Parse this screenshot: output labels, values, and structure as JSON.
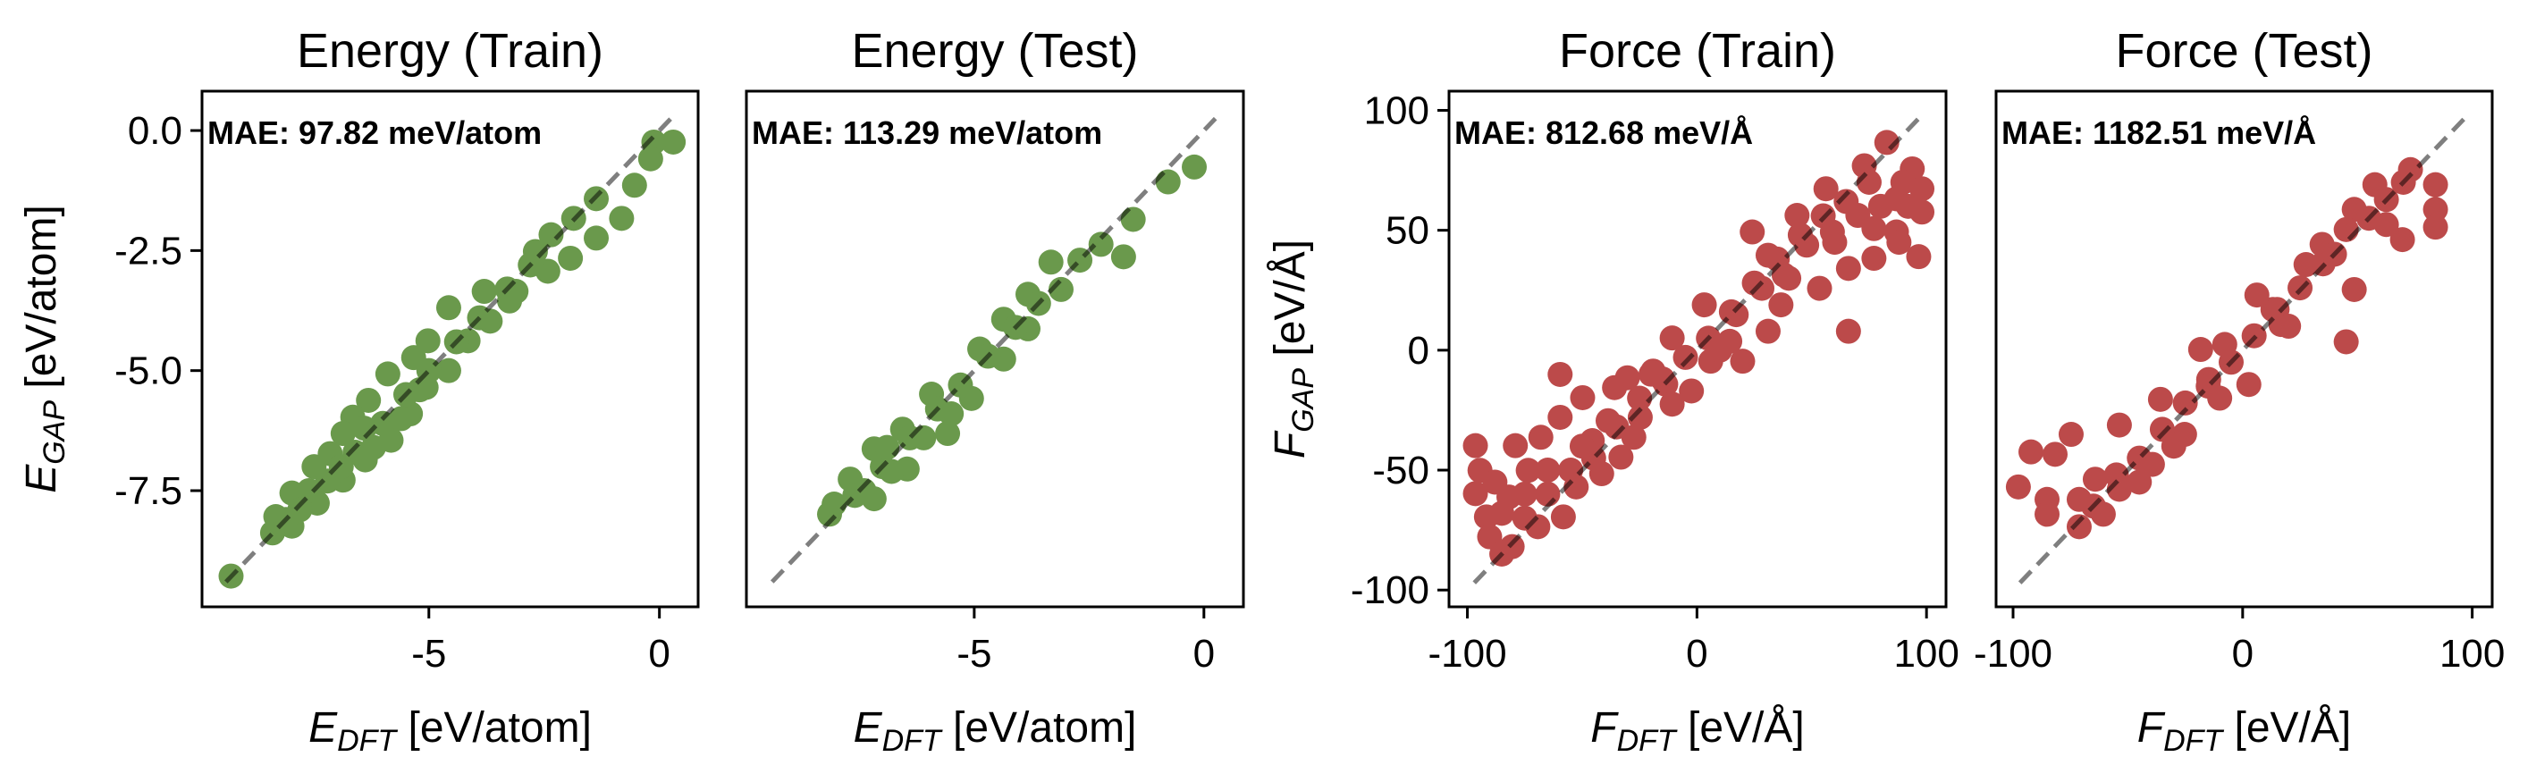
{
  "chart_data": [
    {
      "type": "scatter",
      "title": "Energy (Train)",
      "annotation": "MAE: 97.82 meV/atom",
      "xlabel": {
        "symbol": "E",
        "sub": "DFT",
        "unit": " [eV/atom]"
      },
      "ylabel": {
        "symbol": "E",
        "sub": "GAP",
        "unit": " [eV/atom]"
      },
      "xlim": [
        -9.92,
        0.84
      ],
      "ylim": [
        -9.92,
        0.82
      ],
      "xticks": [
        {
          "v": -5,
          "label": "-5"
        },
        {
          "v": 0,
          "label": "0"
        }
      ],
      "yticks": [
        {
          "v": 0,
          "label": "0.0"
        },
        {
          "v": -2.5,
          "label": "-2.5"
        },
        {
          "v": -5,
          "label": "-5.0"
        },
        {
          "v": -7.5,
          "label": "-7.5"
        }
      ],
      "diagonal": [
        -9.4,
        0.25
      ],
      "color": "#6a994c",
      "points": [
        [
          -9.29,
          -9.28
        ],
        [
          0.3,
          -0.24
        ],
        [
          -0.12,
          -0.24
        ],
        [
          -0.19,
          -0.59
        ],
        [
          -0.54,
          -1.14
        ],
        [
          -1.37,
          -1.42
        ],
        [
          -0.82,
          -1.83
        ],
        [
          -1.86,
          -1.83
        ],
        [
          -1.37,
          -2.24
        ],
        [
          -2.35,
          -2.17
        ],
        [
          -2.69,
          -2.52
        ],
        [
          -1.93,
          -2.66
        ],
        [
          -2.42,
          -2.93
        ],
        [
          -3.11,
          -3.35
        ],
        [
          -3.8,
          -3.35
        ],
        [
          -3.25,
          -3.55
        ],
        [
          -4.57,
          -3.69
        ],
        [
          -3.67,
          -3.97
        ],
        [
          -4.15,
          -4.38
        ],
        [
          -5.02,
          -4.38
        ],
        [
          -5.33,
          -4.73
        ],
        [
          -4.57,
          -5.0
        ],
        [
          -5.89,
          -5.07
        ],
        [
          -5.06,
          -5.35
        ],
        [
          -6.31,
          -5.62
        ],
        [
          -5.4,
          -5.9
        ],
        [
          -6.65,
          -5.97
        ],
        [
          -5.82,
          -6.45
        ],
        [
          -6.86,
          -6.31
        ],
        [
          -6.38,
          -6.86
        ],
        [
          -7.14,
          -6.73
        ],
        [
          -7.49,
          -7.0
        ],
        [
          -6.86,
          -7.28
        ],
        [
          -7.97,
          -7.55
        ],
        [
          -7.42,
          -7.76
        ],
        [
          -8.32,
          -8.04
        ],
        [
          -7.97,
          -8.24
        ],
        [
          -8.39,
          -8.38
        ],
        [
          -7.8,
          -7.9
        ],
        [
          -7.2,
          -7.3
        ],
        [
          -6.6,
          -6.7
        ],
        [
          -6.0,
          -6.1
        ],
        [
          -5.5,
          -5.5
        ],
        [
          -5.0,
          -5.0
        ],
        [
          -4.4,
          -4.4
        ],
        [
          -3.9,
          -3.9
        ],
        [
          -3.3,
          -3.3
        ],
        [
          -2.8,
          -2.8
        ],
        [
          -6.2,
          -6.6
        ],
        [
          -6.9,
          -7.0
        ],
        [
          -5.6,
          -6.0
        ],
        [
          -7.6,
          -7.5
        ],
        [
          -8.1,
          -8.1
        ],
        [
          -6.4,
          -6.2
        ],
        [
          -5.2,
          -5.4
        ]
      ]
    },
    {
      "type": "scatter",
      "title": "Energy (Test)",
      "annotation": "MAE: 113.29 meV/atom",
      "xlabel": {
        "symbol": "E",
        "sub": "DFT",
        "unit": " [eV/atom]"
      },
      "xlim": [
        -9.96,
        0.86
      ],
      "ylim": [
        -9.92,
        0.82
      ],
      "xticks": [
        {
          "v": -5,
          "label": "-5"
        },
        {
          "v": 0,
          "label": "0"
        }
      ],
      "yticks": [],
      "diagonal": [
        -9.4,
        0.25
      ],
      "color": "#6a994c",
      "points": [
        [
          -0.21,
          -0.76
        ],
        [
          -0.78,
          -1.07
        ],
        [
          -1.54,
          -1.85
        ],
        [
          -1.75,
          -2.63
        ],
        [
          -2.24,
          -2.37
        ],
        [
          -3.33,
          -2.74
        ],
        [
          -3.11,
          -3.31
        ],
        [
          -3.83,
          -3.41
        ],
        [
          -4.36,
          -3.93
        ],
        [
          -3.83,
          -4.13
        ],
        [
          -4.88,
          -4.55
        ],
        [
          -4.36,
          -4.76
        ],
        [
          -5.93,
          -5.49
        ],
        [
          -5.06,
          -5.58
        ],
        [
          -6.56,
          -6.22
        ],
        [
          -5.58,
          -6.31
        ],
        [
          -7.18,
          -6.63
        ],
        [
          -6.46,
          -7.05
        ],
        [
          -7.7,
          -7.26
        ],
        [
          -7.18,
          -7.67
        ],
        [
          -8.05,
          -7.78
        ],
        [
          -8.15,
          -7.99
        ],
        [
          -7.6,
          -7.6
        ],
        [
          -7.0,
          -7.0
        ],
        [
          -6.4,
          -6.4
        ],
        [
          -5.8,
          -5.8
        ],
        [
          -5.3,
          -5.3
        ],
        [
          -4.7,
          -4.7
        ],
        [
          -4.1,
          -4.1
        ],
        [
          -3.6,
          -3.6
        ],
        [
          -2.7,
          -2.7
        ],
        [
          -6.8,
          -7.1
        ],
        [
          -6.1,
          -6.4
        ],
        [
          -7.4,
          -7.5
        ],
        [
          -6.9,
          -6.6
        ],
        [
          -5.5,
          -5.9
        ]
      ]
    },
    {
      "type": "scatter",
      "title": "Force (Train)",
      "annotation": "MAE: 812.68 meV/Å",
      "xlabel": {
        "symbol": "F",
        "sub": "DFT",
        "unit": " [eV/Å]"
      },
      "ylabel": {
        "symbol": "F",
        "sub": "GAP",
        "unit": " [eV/Å]"
      },
      "xlim": [
        -108,
        108.5
      ],
      "ylim": [
        -107,
        108
      ],
      "xticks": [
        {
          "v": -100,
          "label": "-100"
        },
        {
          "v": 0,
          "label": "0"
        },
        {
          "v": 100,
          "label": "100"
        }
      ],
      "yticks": [
        {
          "v": 100,
          "label": "100"
        },
        {
          "v": 50,
          "label": "50"
        },
        {
          "v": 0,
          "label": "0"
        },
        {
          "v": -50,
          "label": "-50"
        },
        {
          "v": -100,
          "label": "-100"
        }
      ],
      "diagonal": [
        -97,
        97
      ],
      "color": "#bc4a4a",
      "points": [
        [
          82.7,
          86.6
        ],
        [
          93.8,
          75.6
        ],
        [
          98,
          67.3
        ],
        [
          98,
          57.6
        ],
        [
          96.6,
          39
        ],
        [
          86.9,
          49.3
        ],
        [
          77.1,
          38.3
        ],
        [
          66,
          34.1
        ],
        [
          53.4,
          25.8
        ],
        [
          66,
          7.9
        ],
        [
          31,
          7.9
        ],
        [
          19.9,
          -4.6
        ],
        [
          36.6,
          18.9
        ],
        [
          56.2,
          67.3
        ],
        [
          43.6,
          56.2
        ],
        [
          31,
          39.6
        ],
        [
          24.1,
          49.3
        ],
        [
          3.2,
          18.9
        ],
        [
          -2.4,
          -17
        ],
        [
          -10.8,
          5.1
        ],
        [
          -19.1,
          -8.7
        ],
        [
          -30.3,
          -11.5
        ],
        [
          -35.9,
          -15.6
        ],
        [
          -49.8,
          -19.8
        ],
        [
          -59.6,
          -10.1
        ],
        [
          -59.6,
          -28
        ],
        [
          -33.1,
          -44.6
        ],
        [
          -41.5,
          -51.5
        ],
        [
          -52.6,
          -57
        ],
        [
          -68,
          -36.3
        ],
        [
          -79.1,
          -39.8
        ],
        [
          -96.5,
          -39.8
        ],
        [
          -94.5,
          -50.1
        ],
        [
          -96.5,
          -59.8
        ],
        [
          -91.7,
          -69.5
        ],
        [
          -90.3,
          -77.8
        ],
        [
          -80.5,
          -81.9
        ],
        [
          -81.9,
          -61.2
        ],
        [
          -69.3,
          -73.6
        ],
        [
          -58.2,
          -69.5
        ],
        [
          -73.5,
          -50.1
        ],
        [
          -45.6,
          -37.7
        ],
        [
          -24.7,
          -28
        ],
        [
          -13.6,
          -14.2
        ],
        [
          14.3,
          3.7
        ],
        [
          28.3,
          25.8
        ],
        [
          47.8,
          43.8
        ],
        [
          70.1,
          56.2
        ],
        [
          77.1,
          50.7
        ],
        [
          86.9,
          63.1
        ],
        [
          59,
          49.3
        ],
        [
          89.7,
          70
        ],
        [
          72.9,
          76.9
        ],
        [
          38,
          31.3
        ],
        [
          17.1,
          14.8
        ],
        [
          -10.8,
          -22.5
        ],
        [
          6,
          -4.6
        ],
        [
          -27.5,
          -36.3
        ],
        [
          -38.7,
          -29.4
        ],
        [
          -85,
          -85
        ],
        [
          -75,
          -70
        ],
        [
          -65,
          -60
        ],
        [
          -55,
          -50
        ],
        [
          -45,
          -45
        ],
        [
          -35,
          -32
        ],
        [
          -25,
          -20
        ],
        [
          -15,
          -12
        ],
        [
          -5,
          -3
        ],
        [
          5,
          5
        ],
        [
          15,
          16
        ],
        [
          25,
          28
        ],
        [
          35,
          38
        ],
        [
          45,
          48
        ],
        [
          55,
          56
        ],
        [
          65,
          62
        ],
        [
          75,
          70
        ],
        [
          92,
          60
        ],
        [
          88,
          45
        ],
        [
          -88,
          -55
        ],
        [
          -85,
          -68
        ],
        [
          -75,
          -60
        ],
        [
          -65,
          -50
        ],
        [
          -50,
          -40
        ],
        [
          -20,
          -10
        ],
        [
          10,
          0
        ],
        [
          40,
          30
        ],
        [
          60,
          45
        ],
        [
          80,
          60
        ]
      ]
    },
    {
      "type": "scatter",
      "title": "Force (Test)",
      "annotation": "MAE: 1182.51 meV/Å",
      "xlabel": {
        "symbol": "F",
        "sub": "DFT",
        "unit": " [eV/Å]"
      },
      "xlim": [
        -107.4,
        108.7
      ],
      "ylim": [
        -107,
        108
      ],
      "xticks": [
        {
          "v": -100,
          "label": "-100"
        },
        {
          "v": 0,
          "label": "0"
        },
        {
          "v": 100,
          "label": "100"
        }
      ],
      "yticks": [],
      "diagonal": [
        -97,
        97
      ],
      "color": "#bc4a4a",
      "points": [
        [
          84,
          69
        ],
        [
          84,
          58.7
        ],
        [
          84,
          51.3
        ],
        [
          73.1,
          75.3
        ],
        [
          57.6,
          69
        ],
        [
          69.6,
          46.1
        ],
        [
          48.6,
          58.7
        ],
        [
          34.6,
          44.1
        ],
        [
          48.6,
          25.3
        ],
        [
          45.1,
          3.5
        ],
        [
          27.6,
          35.7
        ],
        [
          16.7,
          10.7
        ],
        [
          6.2,
          23
        ],
        [
          -7.8,
          2.4
        ],
        [
          2.7,
          -14.3
        ],
        [
          -18.3,
          0.3
        ],
        [
          -35.8,
          -20.5
        ],
        [
          -25.3,
          -35.1
        ],
        [
          -39.3,
          -47.6
        ],
        [
          -53.7,
          -31.2
        ],
        [
          -53.7,
          -58
        ],
        [
          -60.7,
          -68.4
        ],
        [
          -71.2,
          -73.6
        ],
        [
          -74.7,
          -35.1
        ],
        [
          -81.7,
          -43.4
        ],
        [
          -92.2,
          -42.4
        ],
        [
          -97.7,
          -57
        ],
        [
          -85.2,
          -62.2
        ],
        [
          -85.2,
          -68.4
        ],
        [
          -64.2,
          -53.8
        ],
        [
          -71.2,
          -62.2
        ],
        [
          -14.8,
          -12.2
        ],
        [
          13.2,
          17
        ],
        [
          45.1,
          50.3
        ],
        [
          62.6,
          62.8
        ],
        [
          62.6,
          52.4
        ],
        [
          -65,
          -65
        ],
        [
          -55,
          -52
        ],
        [
          -45,
          -45
        ],
        [
          -35,
          -33
        ],
        [
          -25,
          -22
        ],
        [
          -15,
          -15
        ],
        [
          -5,
          -5
        ],
        [
          5,
          6
        ],
        [
          15,
          17
        ],
        [
          25,
          26
        ],
        [
          35,
          36
        ],
        [
          55,
          55
        ],
        [
          70,
          70
        ],
        [
          -45,
          -55
        ],
        [
          -30,
          -40
        ],
        [
          -10,
          -20
        ],
        [
          20,
          10
        ],
        [
          40,
          40
        ]
      ]
    }
  ]
}
